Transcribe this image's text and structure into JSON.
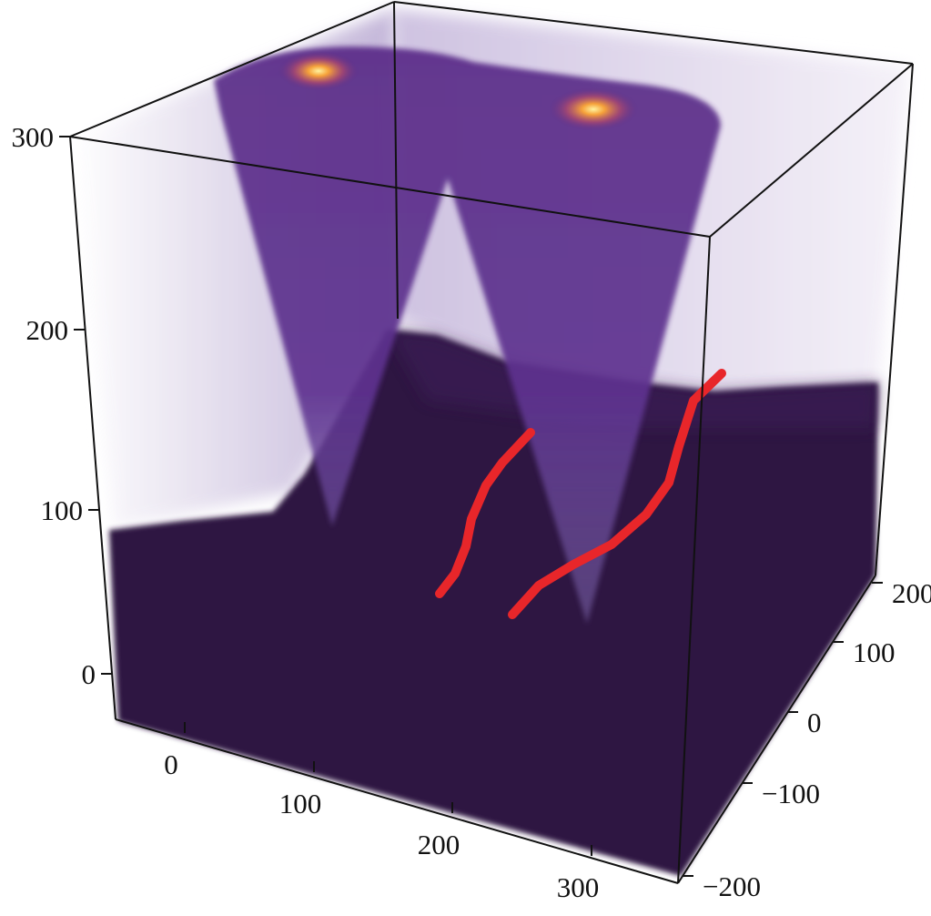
{
  "chart_data": {
    "type": "heatmap",
    "rendering": "3d-volume",
    "colormap": "inferno-like",
    "colors": {
      "volume_dark": "#2e1543",
      "cone": "#5b2e86",
      "haze": "#c9bedc",
      "hotspot": "#f7a33a",
      "curves": "#e8262a",
      "box": "#111111"
    },
    "axes": {
      "x": {
        "ticks": [
          "0",
          "100",
          "200",
          "300"
        ]
      },
      "y": {
        "ticks": [
          "-200",
          "-100",
          "0",
          "100",
          "200"
        ]
      },
      "z": {
        "ticks": [
          "0",
          "100",
          "200",
          "300"
        ]
      }
    },
    "series": [
      {
        "kind": "curve",
        "color": "#e8262a"
      },
      {
        "kind": "curve",
        "color": "#e8262a"
      }
    ],
    "grid": false,
    "legend": "none"
  }
}
